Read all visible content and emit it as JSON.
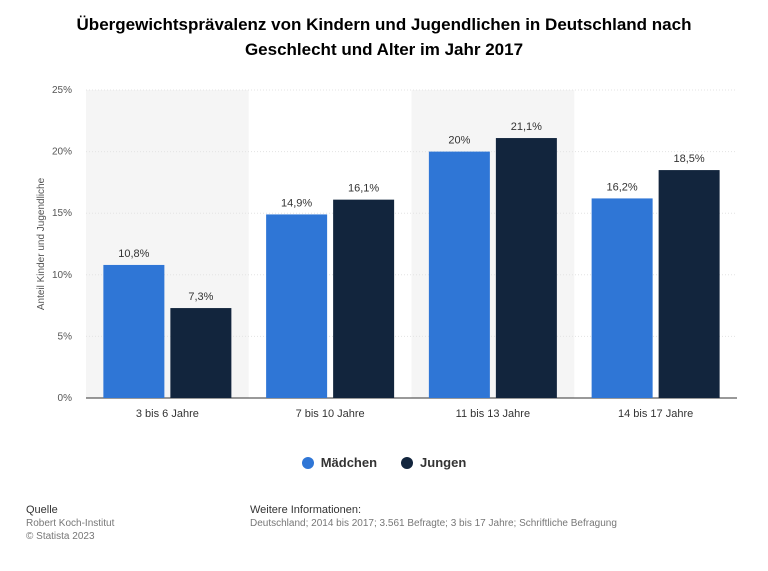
{
  "chart_data": {
    "type": "bar",
    "title": "Übergewichtsprävalenz von Kindern und Jugendlichen in Deutschland nach Geschlecht und Alter im Jahr 2017",
    "categories": [
      "3 bis 6 Jahre",
      "7 bis 10 Jahre",
      "11 bis 13 Jahre",
      "14 bis 17 Jahre"
    ],
    "series": [
      {
        "name": "Mädchen",
        "color": "#2F76D6",
        "values": [
          10.8,
          14.9,
          20,
          16.2
        ],
        "labels": [
          "10,8%",
          "14,9%",
          "20%",
          "16,2%"
        ]
      },
      {
        "name": "Jungen",
        "color": "#12253D",
        "values": [
          7.3,
          16.1,
          21.1,
          18.5
        ],
        "labels": [
          "7,3%",
          "16,1%",
          "21,1%",
          "18,5%"
        ]
      }
    ],
    "xlabel": "",
    "ylabel": "Anteil Kinder und Jugendliche",
    "ylim": [
      0,
      25
    ],
    "yticks": [
      0,
      5,
      10,
      15,
      20,
      25
    ],
    "ytick_labels": [
      "0%",
      "5%",
      "10%",
      "15%",
      "20%",
      "25%"
    ],
    "grid": true,
    "legend_position": "bottom-center"
  },
  "legend": {
    "madchen": "Mädchen",
    "jungen": "Jungen"
  },
  "colors": {
    "madchen": "#2F76D6",
    "jungen": "#12253D",
    "band": "#F5F5F5"
  },
  "footer": {
    "source_heading": "Quelle",
    "source_line1": "Robert Koch-Institut",
    "source_line2": "© Statista 2023",
    "info_heading": "Weitere Informationen:",
    "info_text": "Deutschland; 2014 bis 2017; 3.561 Befragte; 3 bis 17 Jahre; Schriftliche Befragung"
  }
}
